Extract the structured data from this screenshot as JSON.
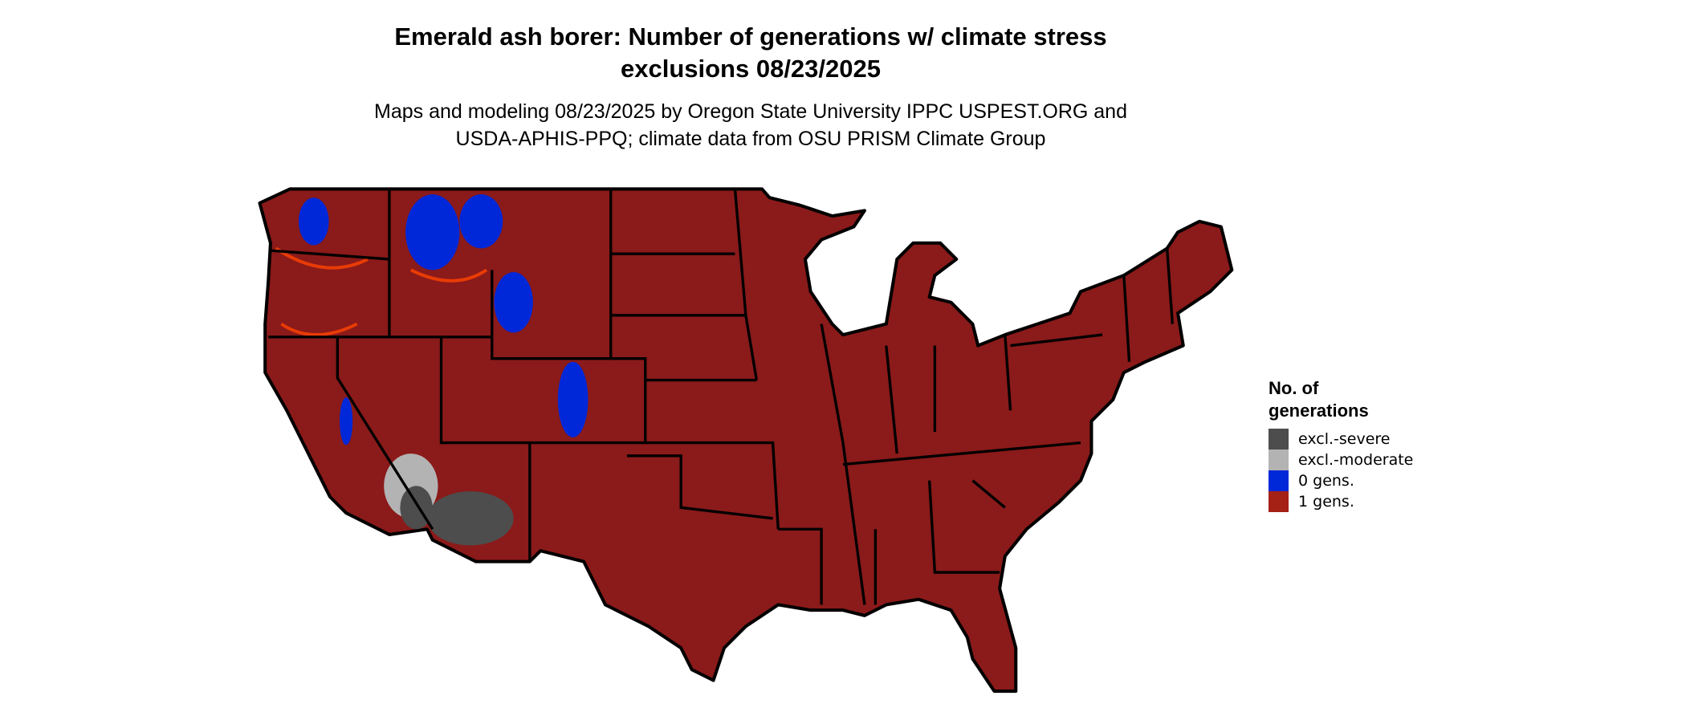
{
  "title": [
    "Emerald ash borer: Number of generations w/ climate stress",
    "exclusions 08/23/2025"
  ],
  "subtitle": [
    "Maps and modeling 08/23/2025 by Oregon State University IPPC USPEST.ORG and",
    "USDA-APHIS-PPQ; climate data from OSU PRISM Climate Group"
  ],
  "legend": {
    "title": [
      "No. of",
      "generations"
    ],
    "items": [
      {
        "label": "excl.-severe",
        "color": "#4d4d4d"
      },
      {
        "label": "excl.-moderate",
        "color": "#b3b3b3"
      },
      {
        "label": "0 gens.",
        "color": "#0028d8"
      },
      {
        "label": "1 gens.",
        "color": "#a52015"
      }
    ]
  },
  "map": {
    "region": "Conterminous United States",
    "dominant_color": "#8b1a1a",
    "accent_color": "#ff4400"
  }
}
